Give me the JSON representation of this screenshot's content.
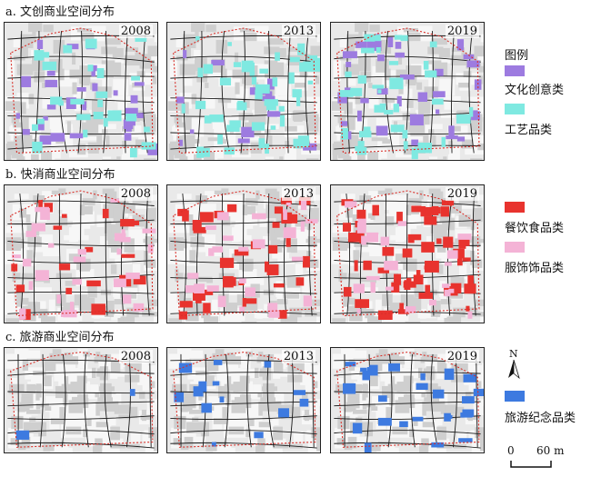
{
  "sections": [
    {
      "id": "a",
      "title": "a. 文创商业空间分布",
      "panels": [
        {
          "year": "2008",
          "category_colors": [
            "#9d7be0",
            "#7fe9e1"
          ],
          "density": [
            0.25,
            0.22
          ]
        },
        {
          "year": "2013",
          "category_colors": [
            "#9d7be0",
            "#7fe9e1"
          ],
          "density": [
            0.12,
            0.4
          ]
        },
        {
          "year": "2019",
          "category_colors": [
            "#9d7be0",
            "#7fe9e1"
          ],
          "density": [
            0.28,
            0.3
          ]
        }
      ],
      "legend": {
        "title": "图例",
        "items": [
          {
            "label": "文化创意类",
            "color": "#9d7be0"
          },
          {
            "label": "工艺品类",
            "color": "#7fe9e1"
          }
        ]
      }
    },
    {
      "id": "b",
      "title": "b. 快消商业空间分布",
      "panels": [
        {
          "year": "2008",
          "category_colors": [
            "#e8332e",
            "#f4b3d6"
          ],
          "density": [
            0.15,
            0.25
          ]
        },
        {
          "year": "2013",
          "category_colors": [
            "#e8332e",
            "#f4b3d6"
          ],
          "density": [
            0.3,
            0.22
          ]
        },
        {
          "year": "2019",
          "category_colors": [
            "#e8332e",
            "#f4b3d6"
          ],
          "density": [
            0.45,
            0.18
          ]
        }
      ],
      "legend": {
        "title": "",
        "items": [
          {
            "label": "餐饮食品类",
            "color": "#e8332e"
          },
          {
            "label": "服饰饰品类",
            "color": "#f4b3d6"
          }
        ]
      }
    },
    {
      "id": "c",
      "title": "c. 旅游商业空间分布",
      "panels": [
        {
          "year": "2008",
          "category_colors": [
            "#3d7ae0"
          ],
          "density": [
            0.02
          ]
        },
        {
          "year": "2013",
          "category_colors": [
            "#3d7ae0"
          ],
          "density": [
            0.12
          ]
        },
        {
          "year": "2019",
          "category_colors": [
            "#3d7ae0"
          ],
          "density": [
            0.22
          ]
        }
      ],
      "legend": {
        "title": "",
        "items": [
          {
            "label": "旅游纪念品类",
            "color": "#3d7ae0"
          }
        ]
      }
    }
  ],
  "north_arrow": {
    "label": "N"
  },
  "scale_bar": {
    "start": "0",
    "end": "60 m"
  },
  "colors": {
    "boundary": "#d9302a",
    "road": "#1a1a1a",
    "block": "#cfcfcf",
    "background": "#e9e9e9"
  }
}
